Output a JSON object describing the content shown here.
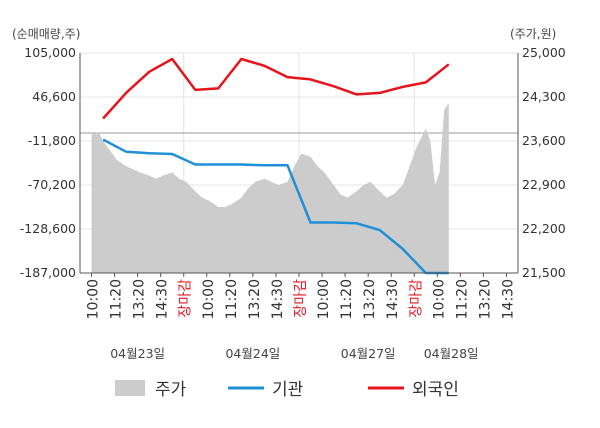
{
  "chart_data": {
    "type": "line",
    "left_axis_unit": "(순매매량,주)",
    "right_axis_unit": "(주가,원)",
    "left_ticks": [
      105000,
      46600,
      -11800,
      -70200,
      -128600,
      -187000
    ],
    "left_tick_labels": [
      "105,000",
      "46,600",
      "-11,800",
      "-70,200",
      "-128,600",
      "-187,000"
    ],
    "right_ticks": [
      25000,
      24300,
      23600,
      22900,
      22200,
      21500
    ],
    "right_tick_labels": [
      "25,000",
      "24,300",
      "23,600",
      "22,900",
      "22,200",
      "21,500"
    ],
    "left_range": [
      -187000,
      105000
    ],
    "right_range": [
      21500,
      25000
    ],
    "x_tick_labels": [
      "10:00",
      "11:20",
      "13:20",
      "14:30",
      "장마감",
      "10:00",
      "11:20",
      "13:20",
      "14:30",
      "장마감",
      "10:00",
      "11:20",
      "13:20",
      "14:30",
      "장마감",
      "10:00",
      "11:20",
      "13:20",
      "14:30"
    ],
    "x_tick_highlight": [
      4,
      9,
      14
    ],
    "day_labels": [
      {
        "label": "04월23일",
        "slot": 2
      },
      {
        "label": "04월24일",
        "slot": 7
      },
      {
        "label": "04월27일",
        "slot": 12
      },
      {
        "label": "04월28일",
        "slot": 15.6
      }
    ],
    "series": [
      {
        "name": "기관",
        "color": "#1f8fd6",
        "axis": "left",
        "x": [
          1,
          2,
          3,
          4,
          5,
          6,
          7,
          8,
          9,
          10,
          11,
          12,
          13,
          14,
          15,
          16
        ],
        "values": [
          -10000,
          -26000,
          -28000,
          -29000,
          -43000,
          -43000,
          -43000,
          -44000,
          -44000,
          -120000,
          -120000,
          -121000,
          -130000,
          -155000,
          -187000,
          -187000
        ]
      },
      {
        "name": "외국인",
        "color": "#e8141b",
        "axis": "left",
        "x": [
          1,
          2,
          3,
          4,
          5,
          6,
          7,
          8,
          9,
          10,
          11,
          12,
          13,
          14,
          15,
          16
        ],
        "values": [
          18000,
          52000,
          80000,
          97000,
          56000,
          58000,
          97000,
          88000,
          73000,
          70000,
          61000,
          50000,
          52000,
          60000,
          66000,
          90000
        ]
      },
      {
        "name": "주가",
        "color": "#cccccc",
        "axis": "right",
        "x": [
          0.5,
          0.8,
          1,
          1.3,
          1.6,
          2,
          2.3,
          2.6,
          3,
          3.3,
          3.6,
          4,
          4.3,
          4.6,
          5,
          5.3,
          5.6,
          6,
          6.3,
          6.6,
          7,
          7.3,
          7.6,
          8,
          8.3,
          8.6,
          9,
          9.3,
          9.6,
          10,
          10.3,
          10.6,
          11,
          11.3,
          11.6,
          12,
          12.3,
          12.6,
          13,
          13.3,
          13.6,
          14,
          14.3,
          14.6,
          15,
          15.2,
          15.4,
          15.6,
          15.8,
          16
        ],
        "values": [
          23700,
          23750,
          23600,
          23450,
          23300,
          23200,
          23150,
          23100,
          23050,
          23000,
          23050,
          23100,
          23000,
          22950,
          22800,
          22700,
          22650,
          22550,
          22550,
          22600,
          22700,
          22850,
          22950,
          23000,
          22950,
          22900,
          22950,
          23200,
          23400,
          23350,
          23200,
          23100,
          22900,
          22750,
          22700,
          22800,
          22900,
          22950,
          22800,
          22700,
          22750,
          22900,
          23200,
          23500,
          23800,
          23600,
          22900,
          23100,
          24100,
          24200
        ]
      }
    ]
  },
  "legend": [
    {
      "label": "주가",
      "type": "area",
      "color": "#cccccc"
    },
    {
      "label": "기관",
      "type": "line",
      "color": "#1f8fd6"
    },
    {
      "label": "외국인",
      "type": "line",
      "color": "#e8141b"
    }
  ]
}
